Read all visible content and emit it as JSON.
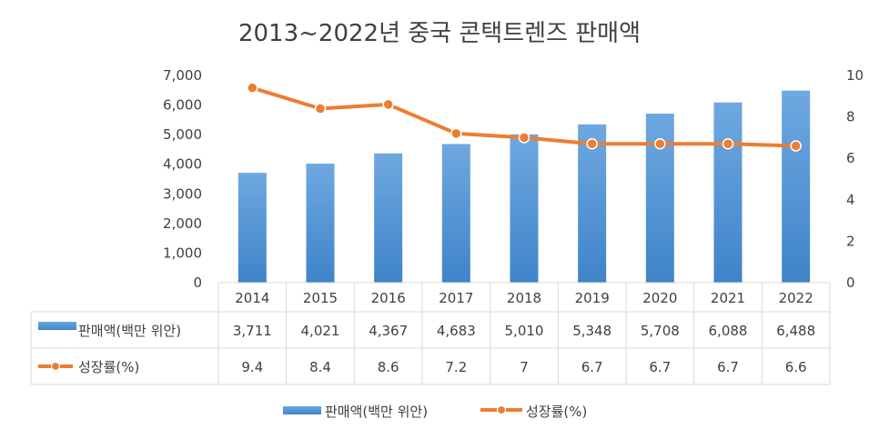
{
  "chart_data": {
    "type": "bar",
    "title": "2013~2022년 중국 콘택트렌즈 판매액",
    "categories": [
      "2014",
      "2015",
      "2016",
      "2017",
      "2018",
      "2019",
      "2020",
      "2021",
      "2022"
    ],
    "series": [
      {
        "name": "판매액(백만 위안)",
        "type": "bar",
        "axis": "left",
        "color": "#4a90d2",
        "values": [
          3711,
          4021,
          4367,
          4683,
          5010,
          5348,
          5708,
          6088,
          6488
        ],
        "labels": [
          "3,711",
          "4,021",
          "4,367",
          "4,683",
          "5,010",
          "5,348",
          "5,708",
          "6,088",
          "6,488"
        ]
      },
      {
        "name": "성장률(%)",
        "type": "line",
        "axis": "right",
        "color": "#ed7d31",
        "values": [
          9.4,
          8.4,
          8.6,
          7.2,
          7,
          6.7,
          6.7,
          6.7,
          6.6
        ],
        "labels": [
          "9.4",
          "8.4",
          "8.6",
          "7.2",
          "7",
          "6.7",
          "6.7",
          "6.7",
          "6.6"
        ]
      }
    ],
    "y_left": {
      "min": 0,
      "max": 7000,
      "ticks": [
        "0",
        "1,000",
        "2,000",
        "3,000",
        "4,000",
        "5,000",
        "6,000",
        "7,000"
      ]
    },
    "y_right": {
      "min": 0,
      "max": 10,
      "ticks": [
        "0",
        "2",
        "4",
        "6",
        "8",
        "10"
      ]
    },
    "grid": false,
    "data_table": true,
    "legend_position": "bottom"
  }
}
